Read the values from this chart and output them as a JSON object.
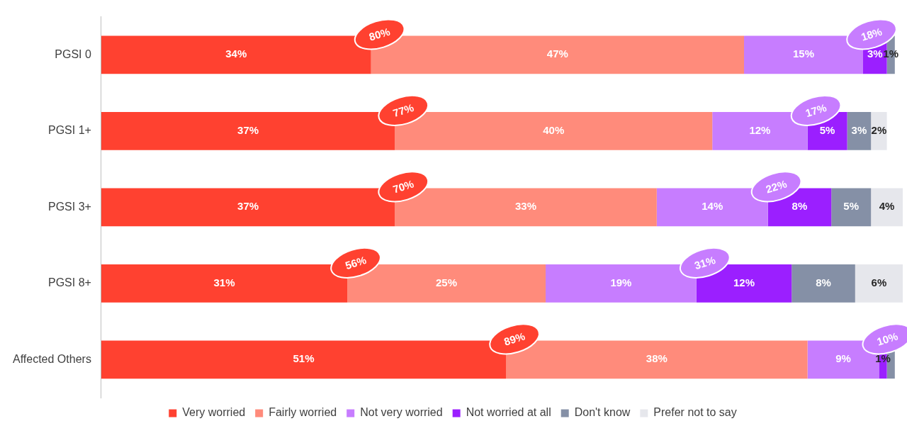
{
  "chart_data": {
    "type": "bar",
    "orientation": "horizontal",
    "stacked": true,
    "categories": [
      "PGSI 0",
      "PGSI 1+",
      "PGSI 3+",
      "PGSI 8+",
      "Affected Others"
    ],
    "xlim": [
      0,
      101
    ],
    "tick_labels": "y",
    "legend": "bottom",
    "grid": false,
    "series": [
      {
        "name": "Very worried",
        "color": "#ff4130",
        "values": [
          34,
          37,
          37,
          31,
          51
        ],
        "value_labels": [
          "34%",
          "37%",
          "37%",
          "31%",
          "51%"
        ]
      },
      {
        "name": "Fairly worried",
        "color": "#ff8b7b",
        "values": [
          47,
          40,
          33,
          25,
          38
        ],
        "value_labels": [
          "47%",
          "40%",
          "33%",
          "25%",
          "38%"
        ]
      },
      {
        "name": "Not very worried",
        "color": "#c77dff",
        "values": [
          15,
          12,
          14,
          19,
          9
        ],
        "value_labels": [
          "15%",
          "12%",
          "14%",
          "19%",
          "9%"
        ]
      },
      {
        "name": "Not worried at all",
        "color": "#9b1fff",
        "values": [
          3,
          5,
          8,
          12,
          1
        ],
        "value_labels": [
          "3%",
          "5%",
          "8%",
          "12%",
          "1%"
        ]
      },
      {
        "name": "Don't know",
        "color": "#8590a6",
        "values": [
          1,
          3,
          5,
          8,
          1
        ],
        "value_labels": [
          "1%",
          "3%",
          "5%",
          "8%",
          null
        ]
      },
      {
        "name": "Prefer not to say",
        "color": "#e6e7ec",
        "values": [
          0,
          2,
          4,
          6,
          0
        ],
        "value_labels": [
          null,
          "2%",
          "4%",
          "6%",
          null
        ]
      }
    ],
    "annotations": [
      {
        "text": "80%",
        "x": 34,
        "y": "PGSI 0"
      },
      {
        "text": "18%",
        "x": 96,
        "y": "PGSI 0"
      },
      {
        "text": "77%",
        "x": 37,
        "y": "PGSI 1+"
      },
      {
        "text": "17%",
        "x": 89,
        "y": "PGSI 1+"
      },
      {
        "text": "70%",
        "x": 37,
        "y": "PGSI 3+"
      },
      {
        "text": "22%",
        "x": 84,
        "y": "PGSI 3+"
      },
      {
        "text": "56%",
        "x": 31,
        "y": "PGSI 8+"
      },
      {
        "text": "31%",
        "x": 75,
        "y": "PGSI 8+"
      },
      {
        "text": "89%",
        "x": 51,
        "y": "Affected Others"
      },
      {
        "text": "10%",
        "x": 98,
        "y": "Affected Others"
      }
    ]
  }
}
